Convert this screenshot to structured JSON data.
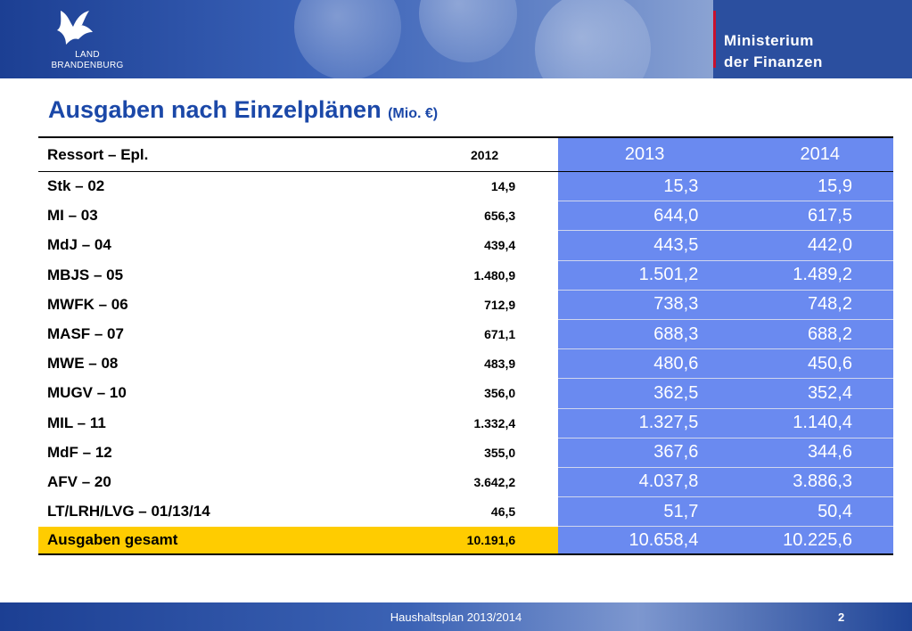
{
  "header": {
    "logo_line1": "LAND",
    "logo_line2": "BRANDENBURG",
    "ministry_line1": "Ministerium",
    "ministry_line2": "der Finanzen"
  },
  "title": {
    "main": "Ausgaben nach Einzelplänen",
    "unit": "(Mio. €)"
  },
  "table": {
    "headers": [
      "Ressort – Epl.",
      "2012",
      "2013",
      "2014"
    ],
    "rows": [
      [
        "Stk – 02",
        "14,9",
        "15,3",
        "15,9"
      ],
      [
        "MI – 03",
        "656,3",
        "644,0",
        "617,5"
      ],
      [
        "MdJ – 04",
        "439,4",
        "443,5",
        "442,0"
      ],
      [
        "MBJS – 05",
        "1.480,9",
        "1.501,2",
        "1.489,2"
      ],
      [
        "MWFK – 06",
        "712,9",
        "738,3",
        "748,2"
      ],
      [
        "MASF – 07",
        "671,1",
        "688,3",
        "688,2"
      ],
      [
        "MWE – 08",
        "483,9",
        "480,6",
        "450,6"
      ],
      [
        "MUGV – 10",
        "356,0",
        "362,5",
        "352,4"
      ],
      [
        "MIL – 11",
        "1.332,4",
        "1.327,5",
        "1.140,4"
      ],
      [
        "MdF – 12",
        "355,0",
        "367,6",
        "344,6"
      ],
      [
        "AFV – 20",
        "3.642,2",
        "4.037,8",
        "3.886,3"
      ],
      [
        "LT/LRH/LVG – 01/13/14",
        "46,5",
        "51,7",
        "50,4"
      ]
    ],
    "total": [
      "Ausgaben gesamt",
      "10.191,6",
      "10.658,4",
      "10.225,6"
    ]
  },
  "footer": {
    "text": "Haushaltsplan 2013/2014",
    "page": "2"
  },
  "colors": {
    "title": "#1b48a8",
    "highlight_cols": "#6a8af0",
    "total_row": "#ffcc00",
    "header_bg": "#2b4f9f"
  }
}
